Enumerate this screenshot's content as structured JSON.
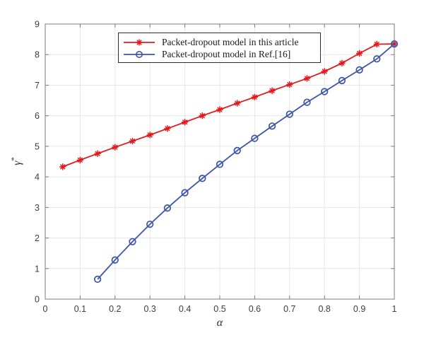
{
  "figure": {
    "background": "#ffffff",
    "plot_box_color": "#7b7b7b",
    "grid_color": "#e6e6e6",
    "tick_label_color": "#3d3d3d",
    "xlabel": "α",
    "ylabel": "γ*",
    "ylabel_base": "γ",
    "ylabel_sup": "*"
  },
  "chart_data": {
    "type": "line",
    "title": "",
    "xlabel": "α",
    "ylabel": "γ*",
    "xlim": [
      0,
      1
    ],
    "ylim": [
      0,
      9
    ],
    "grid": true,
    "legend_position": "top-center-inside",
    "xticks": [
      0,
      0.1,
      0.2,
      0.3,
      0.4,
      0.5,
      0.6,
      0.7,
      0.8,
      0.9,
      1
    ],
    "xtick_labels": [
      "0",
      "0.1",
      "0.2",
      "0.3",
      "0.4",
      "0.5",
      "0.6",
      "0.7",
      "0.8",
      "0.9",
      "1"
    ],
    "yticks": [
      0,
      1,
      2,
      3,
      4,
      5,
      6,
      7,
      8,
      9
    ],
    "ytick_labels": [
      "0",
      "1",
      "2",
      "3",
      "4",
      "5",
      "6",
      "7",
      "8",
      "9"
    ],
    "series": [
      {
        "name": "Packet-dropout model in this article",
        "color": "#e3191e",
        "marker": "asterisk",
        "x": [
          0.05,
          0.1,
          0.15,
          0.2,
          0.25,
          0.3,
          0.35,
          0.4,
          0.45,
          0.5,
          0.55,
          0.6,
          0.65,
          0.7,
          0.75,
          0.8,
          0.85,
          0.9,
          0.95,
          1.0
        ],
        "y": [
          4.33,
          4.55,
          4.76,
          4.97,
          5.17,
          5.37,
          5.58,
          5.79,
          6.0,
          6.2,
          6.41,
          6.61,
          6.82,
          7.02,
          7.22,
          7.45,
          7.72,
          8.04,
          8.34,
          8.35
        ]
      },
      {
        "name": "Packet-dropout model in Ref.[16]",
        "color": "#3b54a8",
        "marker": "circle",
        "x": [
          0.15,
          0.2,
          0.25,
          0.3,
          0.35,
          0.4,
          0.45,
          0.5,
          0.55,
          0.6,
          0.65,
          0.7,
          0.75,
          0.8,
          0.85,
          0.9,
          0.95,
          1.0
        ],
        "y": [
          0.65,
          1.28,
          1.88,
          2.45,
          2.98,
          3.48,
          3.95,
          4.41,
          4.86,
          5.26,
          5.66,
          6.05,
          6.44,
          6.79,
          7.15,
          7.5,
          7.86,
          8.35
        ]
      }
    ]
  }
}
